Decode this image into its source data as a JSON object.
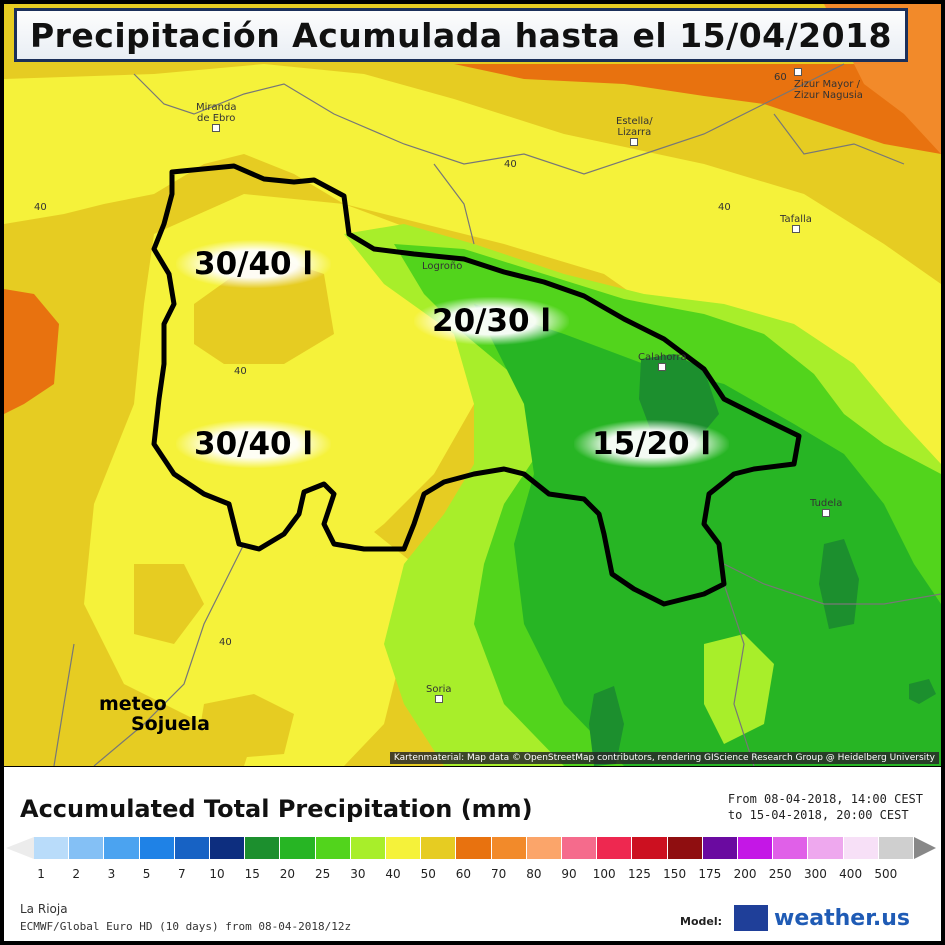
{
  "title": "Precipitación Acumulada hasta el 15/04/2018",
  "zones": [
    {
      "label": "30/40 l"
    },
    {
      "label": "20/30 l"
    },
    {
      "label": "30/40 l"
    },
    {
      "label": "15/20 l"
    }
  ],
  "cities": [
    {
      "name": "Miranda\nde Ebro"
    },
    {
      "name": "Estella/\nLizarra"
    },
    {
      "name": "Zizur Mayor /\nZizur Nagusia"
    },
    {
      "name": "Tafalla"
    },
    {
      "name": "Logroño"
    },
    {
      "name": "Calahorra"
    },
    {
      "name": "Tudela"
    },
    {
      "name": "Soria"
    }
  ],
  "isolines": [
    "40",
    "40",
    "40",
    "40",
    "40",
    "60"
  ],
  "watermark": {
    "line1": "meteo",
    "line2": "Sojuela"
  },
  "attribution": "Kartenmaterial: Map data © OpenStreetMap contributors, rendering GIScience Research Group @ Heidelberg University",
  "legend": {
    "title": "Accumulated Total Precipitation (mm)",
    "from": "From 08-04-2018, 14:00 CEST",
    "to": "to 15-04-2018, 20:00 CEST",
    "ticks": [
      "1",
      "2",
      "3",
      "5",
      "7",
      "10",
      "15",
      "20",
      "25",
      "30",
      "40",
      "50",
      "60",
      "70",
      "80",
      "90",
      "100",
      "125",
      "150",
      "175",
      "200",
      "250",
      "300",
      "400",
      "500"
    ],
    "colors": [
      "#b9dcfa",
      "#84c0f5",
      "#4ba3f0",
      "#1f82e6",
      "#1762c4",
      "#0d2e7f",
      "#1c8f2e",
      "#27b524",
      "#52d41c",
      "#a8ee2a",
      "#f5f23a",
      "#e6cc22",
      "#e8720f",
      "#f28a2a",
      "#fba56a",
      "#f56b8c",
      "#ee2850",
      "#cc1020",
      "#8f0e10",
      "#6a0aa0",
      "#c417e6",
      "#e060e8",
      "#eea8ee",
      "#f7e0f7",
      "#cfcfcf"
    ],
    "region": "La Rioja",
    "model_line": "ECMWF/Global Euro HD (10 days) from 08-04-2018/12z",
    "model_label": "Model:",
    "logo_text": "weather.us"
  }
}
